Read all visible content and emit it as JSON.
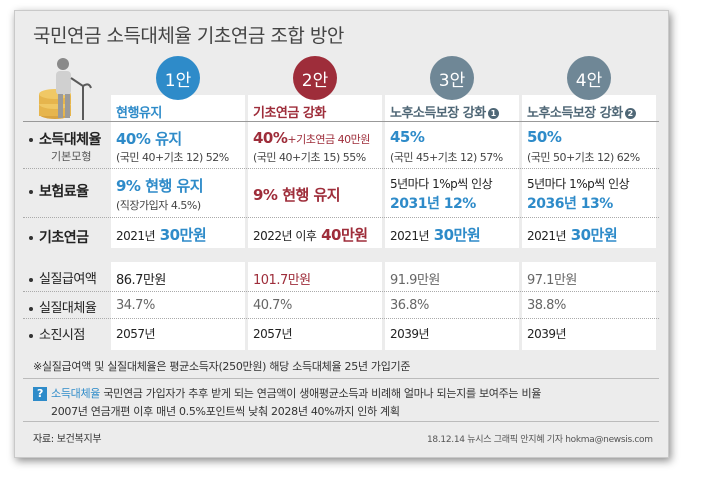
{
  "title": "국민연금 소득대체율 기초연금 조합 방안",
  "colors": {
    "blue": "#2e8bc9",
    "red": "#9e2d3a",
    "gray_badge": "#6f8796"
  },
  "options": [
    {
      "badge": "1안",
      "header": "현행유지"
    },
    {
      "badge": "2안",
      "header": "기초연금 강화"
    },
    {
      "badge": "3안",
      "header": "노후소득보장 강화",
      "header_num": "1"
    },
    {
      "badge": "4안",
      "header": "노후소득보장 강화",
      "header_num": "2"
    }
  ],
  "rows": {
    "replacement": {
      "label": "소득대체율",
      "sublabel": "기본모형"
    },
    "premium": {
      "label": "보험료율"
    },
    "basic": {
      "label": "기초연금"
    },
    "real_amount": {
      "label": "실질급여액"
    },
    "real_rate": {
      "label": "실질대체율"
    },
    "depletion": {
      "label": "소진시점"
    }
  },
  "cells": {
    "replacement": [
      {
        "main": "40% 유지",
        "sub": "(국민 40+기초 12) 52%"
      },
      {
        "main": "40%",
        "main_extra": "+기초연금 40만원",
        "sub": "(국민 40+기초 15) 55%"
      },
      {
        "main": "45%",
        "sub": "(국민 45+기초 12) 57%"
      },
      {
        "main": "50%",
        "sub": "(국민 50+기초 12) 62%"
      }
    ],
    "premium": [
      {
        "main": "9% 현행 유지",
        "sub": "(직장가입자 4.5%)"
      },
      {
        "main": "9% 현행 유지",
        "sub": ""
      },
      {
        "line1": "5년마다 1%p씩 인상",
        "line2": "2031년 12%"
      },
      {
        "line1": "5년마다 1%p씩 인상",
        "line2": "2036년 13%"
      }
    ],
    "basic": [
      {
        "pre": "2021년",
        "amount": "30만원"
      },
      {
        "pre": "2022년 이후",
        "amount": "40만원"
      },
      {
        "pre": "2021년",
        "amount": "30만원"
      },
      {
        "pre": "2021년",
        "amount": "30만원"
      }
    ],
    "real_amount": [
      "86.7만원",
      "101.7만원",
      "91.9만원",
      "97.1만원"
    ],
    "real_rate": [
      "34.7%",
      "40.7%",
      "36.8%",
      "38.8%"
    ],
    "depletion": [
      "2057년",
      "2057년",
      "2039년",
      "2039년"
    ]
  },
  "footnote": "※실질급여액 및 실질대체율은 평균소득자(250만원) 해당 소득대체율 25년 가입기준",
  "info": {
    "icon": "?",
    "term": "소득대체율",
    "line1": "국민연금 가입자가 추후 받게 되는 연금액이 생애평균소득과 비례해 얼마나 되는지를 보여주는 비율",
    "line2": "2007년 연금개편 이후 매년 0.5%포인트씩 낮춰 2028년 40%까지 인하 계획"
  },
  "source": "자료: 보건복지부",
  "credit": "18.12.14 뉴시스 그래픽 안지혜 기자 hokma@newsis.com"
}
